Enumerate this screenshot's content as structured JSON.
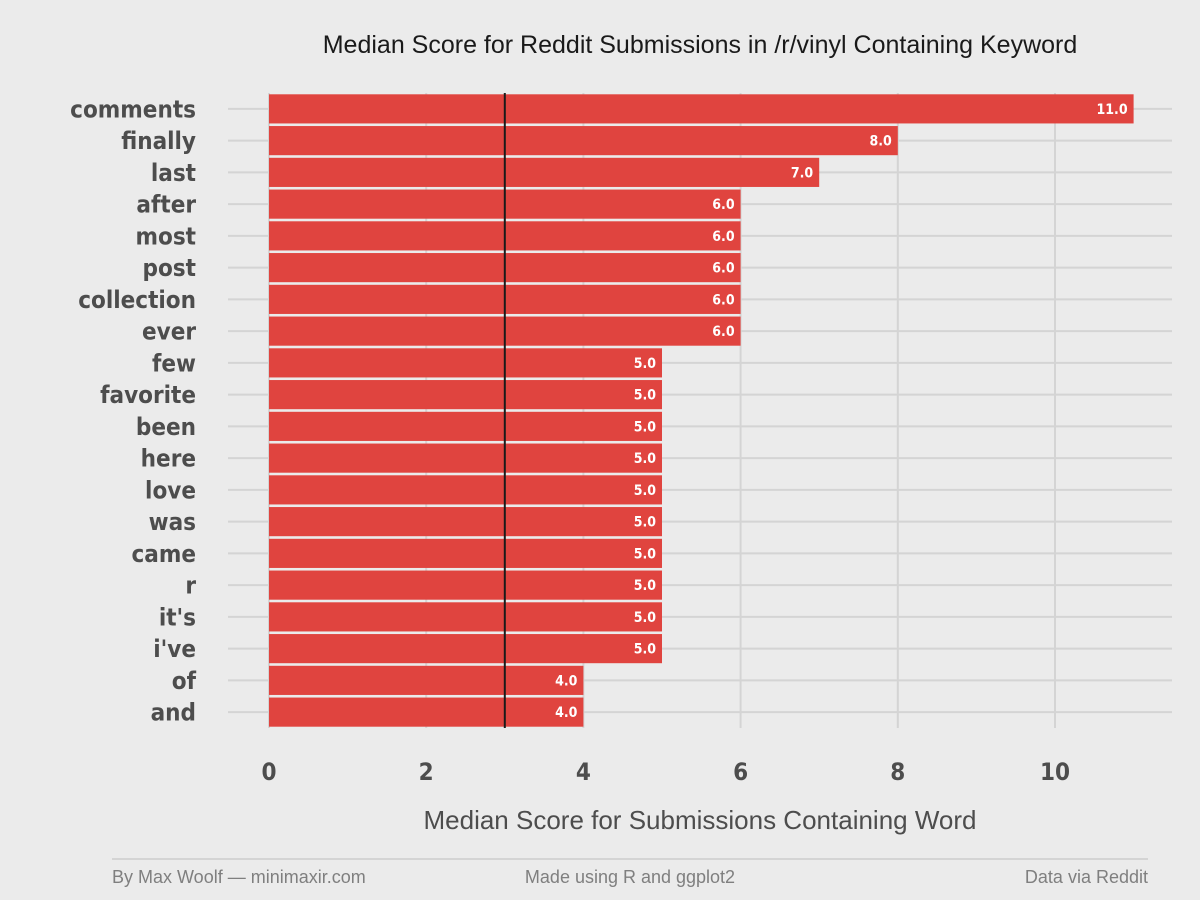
{
  "chart_data": {
    "type": "bar",
    "orientation": "horizontal",
    "title": "Median Score for Reddit Submissions in /r/vinyl Containing Keyword",
    "xlabel": "Median Score for Submissions Containing Word",
    "ylabel": "",
    "categories": [
      "comments",
      "finally",
      "last",
      "after",
      "most",
      "post",
      "collection",
      "ever",
      "few",
      "favorite",
      "been",
      "here",
      "love",
      "was",
      "came",
      "r",
      "it's",
      "i've",
      "of",
      "and"
    ],
    "values": [
      11,
      8,
      7,
      6,
      6,
      6,
      6,
      6,
      5,
      5,
      5,
      5,
      5,
      5,
      5,
      5,
      5,
      5,
      4,
      4
    ],
    "value_labels": [
      "11.0",
      "8.0",
      "7.0",
      "6.0",
      "6.0",
      "6.0",
      "6.0",
      "6.0",
      "5.0",
      "5.0",
      "5.0",
      "5.0",
      "5.0",
      "5.0",
      "5.0",
      "5.0",
      "5.0",
      "5.0",
      "4.0",
      "4.0"
    ],
    "xticks": [
      0,
      2,
      4,
      6,
      8,
      10
    ],
    "xtick_labels": [
      "0",
      "2",
      "4",
      "6",
      "8",
      "10"
    ],
    "xlim": [
      -0.5,
      11.5
    ],
    "reference_line": 3,
    "grid": true,
    "colors": {
      "bar": "#e0443f",
      "reference_line": "#1a1a1a",
      "grid": "#d4d4d4",
      "background": "#ebebeb"
    }
  },
  "footer": {
    "author": "By Max Woolf — minimaxir.com",
    "tool": "Made using R and ggplot2",
    "source": "Data via Reddit"
  }
}
